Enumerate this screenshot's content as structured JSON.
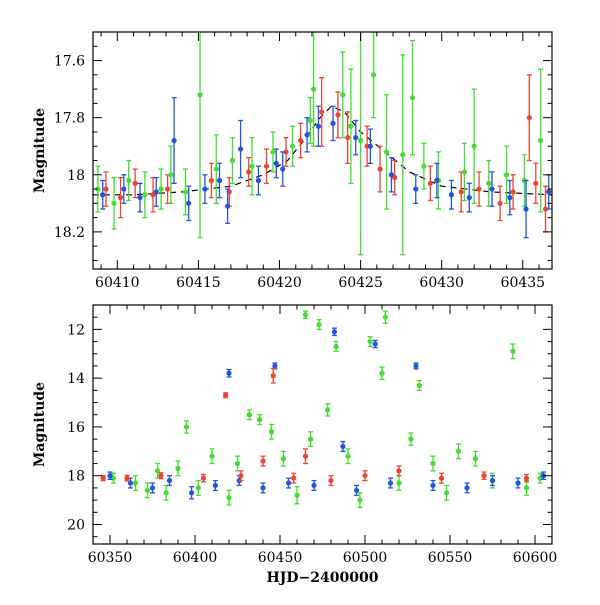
{
  "chart_data": [
    {
      "type": "scatter",
      "title": "",
      "xlabel": "",
      "ylabel": "Magnitude",
      "xlim": [
        60408.5,
        60436.8
      ],
      "ylim": [
        18.33,
        17.5
      ],
      "y_inverted": true,
      "x_ticks": [
        60410,
        60415,
        60420,
        60425,
        60430,
        60435
      ],
      "y_ticks": [
        17.6,
        17.8,
        18,
        18.2
      ],
      "x_tick_labels": [
        "60410",
        "60415",
        "60420",
        "60425",
        "60430",
        "60435"
      ],
      "y_tick_labels": [
        "17.6",
        "17.8",
        "18",
        "18.2"
      ],
      "grid": false,
      "error_bars": true,
      "colors": {
        "red": "#ee4433",
        "green": "#44dd33",
        "blue": "#2255dd",
        "model": "#000000"
      },
      "model_curve": {
        "x": [
          60408.5,
          60411,
          60414,
          60417,
          60419,
          60420.5,
          60421.5,
          60422.5,
          60423.2,
          60424,
          60425,
          60426.5,
          60428,
          60430,
          60433,
          60436.8
        ],
        "y": [
          18.07,
          18.07,
          18.06,
          18.04,
          18.0,
          17.95,
          17.88,
          17.8,
          17.76,
          17.78,
          17.85,
          17.92,
          17.99,
          18.04,
          18.06,
          18.07
        ]
      },
      "series": [
        {
          "color": "red",
          "points": [
            [
              60409.3,
              18.05,
              0.06
            ],
            [
              60410.2,
              18.08,
              0.07
            ],
            [
              60411.1,
              18.03,
              0.05
            ],
            [
              60412.2,
              18.07,
              0.06
            ],
            [
              60413.1,
              18.05,
              0.05
            ],
            [
              60415.8,
              18.02,
              0.06
            ],
            [
              60416.9,
              18.06,
              0.05
            ],
            [
              60418.1,
              17.99,
              0.05
            ],
            [
              60419.2,
              17.97,
              0.06
            ],
            [
              60420.4,
              17.92,
              0.05
            ],
            [
              60421.3,
              17.88,
              0.06
            ],
            [
              60422.6,
              17.78,
              0.12
            ],
            [
              60423.6,
              17.79,
              0.08
            ],
            [
              60424.2,
              17.87,
              0.09
            ],
            [
              60425.4,
              17.9,
              0.07
            ],
            [
              60426.2,
              17.98,
              0.08
            ],
            [
              60427.1,
              18.01,
              0.06
            ],
            [
              60429.3,
              18.03,
              0.06
            ],
            [
              60431.2,
              18.06,
              0.07
            ],
            [
              60432.3,
              18.05,
              0.06
            ],
            [
              60433.6,
              18.1,
              0.06
            ],
            [
              60434.4,
              18.06,
              0.06
            ],
            [
              60435.4,
              17.8,
              0.15
            ],
            [
              60435.8,
              18.03,
              0.07
            ],
            [
              60436.4,
              18.12,
              0.08
            ]
          ]
        },
        {
          "color": "green",
          "points": [
            [
              60408.8,
              18.05,
              0.08
            ],
            [
              60409.8,
              18.1,
              0.09
            ],
            [
              60410.7,
              18.02,
              0.07
            ],
            [
              60411.7,
              18.07,
              0.08
            ],
            [
              60412.7,
              18.05,
              0.07
            ],
            [
              60413.3,
              18.0,
              0.1
            ],
            [
              60414.2,
              18.06,
              0.08
            ],
            [
              60415.1,
              17.72,
              0.5
            ],
            [
              60416.1,
              17.98,
              0.12
            ],
            [
              60417.1,
              17.95,
              0.08
            ],
            [
              60418.3,
              17.97,
              0.1
            ],
            [
              60419.6,
              17.92,
              0.07
            ],
            [
              60420.8,
              17.9,
              0.07
            ],
            [
              60421.9,
              17.81,
              0.08
            ],
            [
              60422.1,
              17.7,
              0.2
            ],
            [
              60423.9,
              17.72,
              0.15
            ],
            [
              60424.4,
              17.83,
              0.2
            ],
            [
              60425.0,
              17.88,
              0.4
            ],
            [
              60425.8,
              17.65,
              0.15
            ],
            [
              60426.6,
              17.92,
              0.2
            ],
            [
              60427.6,
              17.93,
              0.35
            ],
            [
              60428.2,
              17.73,
              0.2
            ],
            [
              60428.9,
              17.97,
              0.08
            ],
            [
              60429.8,
              18.02,
              0.1
            ],
            [
              60431.4,
              17.99,
              0.1
            ],
            [
              60432.0,
              17.9,
              0.2
            ],
            [
              60432.9,
              18.03,
              0.08
            ],
            [
              60434.0,
              18.0,
              0.1
            ],
            [
              60435.1,
              18.02,
              0.09
            ],
            [
              60436.1,
              17.88,
              0.25
            ]
          ]
        },
        {
          "color": "blue",
          "points": [
            [
              60409.1,
              18.07,
              0.05
            ],
            [
              60410.4,
              18.05,
              0.05
            ],
            [
              60411.4,
              18.08,
              0.05
            ],
            [
              60412.4,
              18.06,
              0.05
            ],
            [
              60413.5,
              17.88,
              0.15
            ],
            [
              60414.4,
              18.1,
              0.06
            ],
            [
              60415.4,
              18.05,
              0.05
            ],
            [
              60416.3,
              18.02,
              0.06
            ],
            [
              60416.8,
              18.11,
              0.06
            ],
            [
              60417.6,
              17.91,
              0.1
            ],
            [
              60418.7,
              18.02,
              0.05
            ],
            [
              60419.8,
              17.96,
              0.05
            ],
            [
              60420.2,
              17.98,
              0.06
            ],
            [
              60421.7,
              17.86,
              0.06
            ],
            [
              60422.4,
              17.83,
              0.07
            ],
            [
              60423.3,
              17.82,
              0.06
            ],
            [
              60424.7,
              17.87,
              0.06
            ],
            [
              60425.6,
              17.9,
              0.06
            ],
            [
              60426.9,
              18.0,
              0.06
            ],
            [
              60428.4,
              18.05,
              0.05
            ],
            [
              60429.7,
              18.02,
              0.06
            ],
            [
              60430.6,
              18.07,
              0.05
            ],
            [
              60431.7,
              18.08,
              0.05
            ],
            [
              60433.1,
              18.05,
              0.06
            ],
            [
              60434.2,
              18.08,
              0.06
            ],
            [
              60435.2,
              18.12,
              0.1
            ],
            [
              60436.6,
              18.06,
              0.06
            ]
          ]
        }
      ]
    },
    {
      "type": "scatter",
      "title": "",
      "xlabel": "HJD−2400000",
      "ylabel": "Magnitude",
      "xlim": [
        60340,
        60610
      ],
      "ylim": [
        20.8,
        11.0
      ],
      "y_inverted": true,
      "x_ticks": [
        60350,
        60400,
        60450,
        60500,
        60550,
        60600
      ],
      "y_ticks": [
        12,
        14,
        16,
        18,
        20
      ],
      "x_tick_labels": [
        "60350",
        "60400",
        "60450",
        "60500",
        "60550",
        "60600"
      ],
      "y_tick_labels": [
        "12",
        "14",
        "16",
        "18",
        "20"
      ],
      "grid": false,
      "error_bars": true,
      "colors": {
        "red": "#ee4433",
        "green": "#44dd33",
        "blue": "#2255dd"
      },
      "series": [
        {
          "color": "green",
          "points": [
            [
              60352,
              18.1,
              0.2
            ],
            [
              60365,
              18.3,
              0.3
            ],
            [
              60372,
              18.6,
              0.3
            ],
            [
              60378,
              17.8,
              0.3
            ],
            [
              60383,
              18.7,
              0.3
            ],
            [
              60390,
              17.7,
              0.3
            ],
            [
              60395,
              16.0,
              0.25
            ],
            [
              60402,
              18.5,
              0.3
            ],
            [
              60410,
              17.2,
              0.3
            ],
            [
              60420,
              18.9,
              0.3
            ],
            [
              60425,
              17.5,
              0.3
            ],
            [
              60432,
              15.5,
              0.2
            ],
            [
              60438,
              15.7,
              0.2
            ],
            [
              60445,
              16.2,
              0.3
            ],
            [
              60452,
              17.3,
              0.3
            ],
            [
              60460,
              18.8,
              0.35
            ],
            [
              60465,
              11.4,
              0.15
            ],
            [
              60468,
              16.5,
              0.3
            ],
            [
              60473,
              11.8,
              0.2
            ],
            [
              60478,
              15.3,
              0.25
            ],
            [
              60483,
              12.7,
              0.2
            ],
            [
              60490,
              17.2,
              0.3
            ],
            [
              60497,
              19.0,
              0.3
            ],
            [
              60503,
              12.5,
              0.2
            ],
            [
              60510,
              13.8,
              0.25
            ],
            [
              60512,
              11.5,
              0.25
            ],
            [
              60520,
              18.3,
              0.3
            ],
            [
              60527,
              16.5,
              0.25
            ],
            [
              60532,
              14.3,
              0.2
            ],
            [
              60540,
              17.5,
              0.3
            ],
            [
              60548,
              18.7,
              0.3
            ],
            [
              60555,
              17.0,
              0.3
            ],
            [
              60565,
              17.3,
              0.3
            ],
            [
              60575,
              18.2,
              0.3
            ],
            [
              60587,
              12.9,
              0.3
            ],
            [
              60595,
              18.5,
              0.3
            ],
            [
              60603,
              18.1,
              0.2
            ]
          ]
        },
        {
          "color": "blue",
          "points": [
            [
              60350,
              18.0,
              0.15
            ],
            [
              60362,
              18.3,
              0.2
            ],
            [
              60375,
              18.5,
              0.2
            ],
            [
              60385,
              18.2,
              0.2
            ],
            [
              60398,
              18.7,
              0.25
            ],
            [
              60412,
              18.4,
              0.2
            ],
            [
              60420,
              13.8,
              0.15
            ],
            [
              60426,
              18.2,
              0.2
            ],
            [
              60440,
              18.5,
              0.2
            ],
            [
              60447,
              13.5,
              0.12
            ],
            [
              60455,
              18.3,
              0.2
            ],
            [
              60470,
              18.4,
              0.2
            ],
            [
              60482,
              12.1,
              0.15
            ],
            [
              60487,
              16.8,
              0.2
            ],
            [
              60495,
              18.6,
              0.2
            ],
            [
              60506,
              12.6,
              0.15
            ],
            [
              60515,
              18.3,
              0.2
            ],
            [
              60530,
              13.5,
              0.12
            ],
            [
              60540,
              18.4,
              0.2
            ],
            [
              60560,
              18.5,
              0.2
            ],
            [
              60575,
              18.2,
              0.2
            ],
            [
              60590,
              18.3,
              0.2
            ],
            [
              60605,
              18.0,
              0.15
            ]
          ]
        },
        {
          "color": "red",
          "points": [
            [
              60346,
              18.1,
              0.1
            ],
            [
              60360,
              18.1,
              0.12
            ],
            [
              60380,
              18.0,
              0.12
            ],
            [
              60405,
              18.1,
              0.15
            ],
            [
              60418,
              14.7,
              0.1
            ],
            [
              60427,
              18.0,
              0.2
            ],
            [
              60440,
              17.4,
              0.2
            ],
            [
              60446,
              13.9,
              0.3
            ],
            [
              60458,
              18.1,
              0.2
            ],
            [
              60465,
              17.2,
              0.3
            ],
            [
              60480,
              18.2,
              0.2
            ],
            [
              60500,
              18.0,
              0.2
            ],
            [
              60520,
              17.8,
              0.2
            ],
            [
              60545,
              18.1,
              0.2
            ],
            [
              60570,
              18.0,
              0.15
            ],
            [
              60595,
              18.1,
              0.15
            ]
          ]
        }
      ]
    }
  ]
}
